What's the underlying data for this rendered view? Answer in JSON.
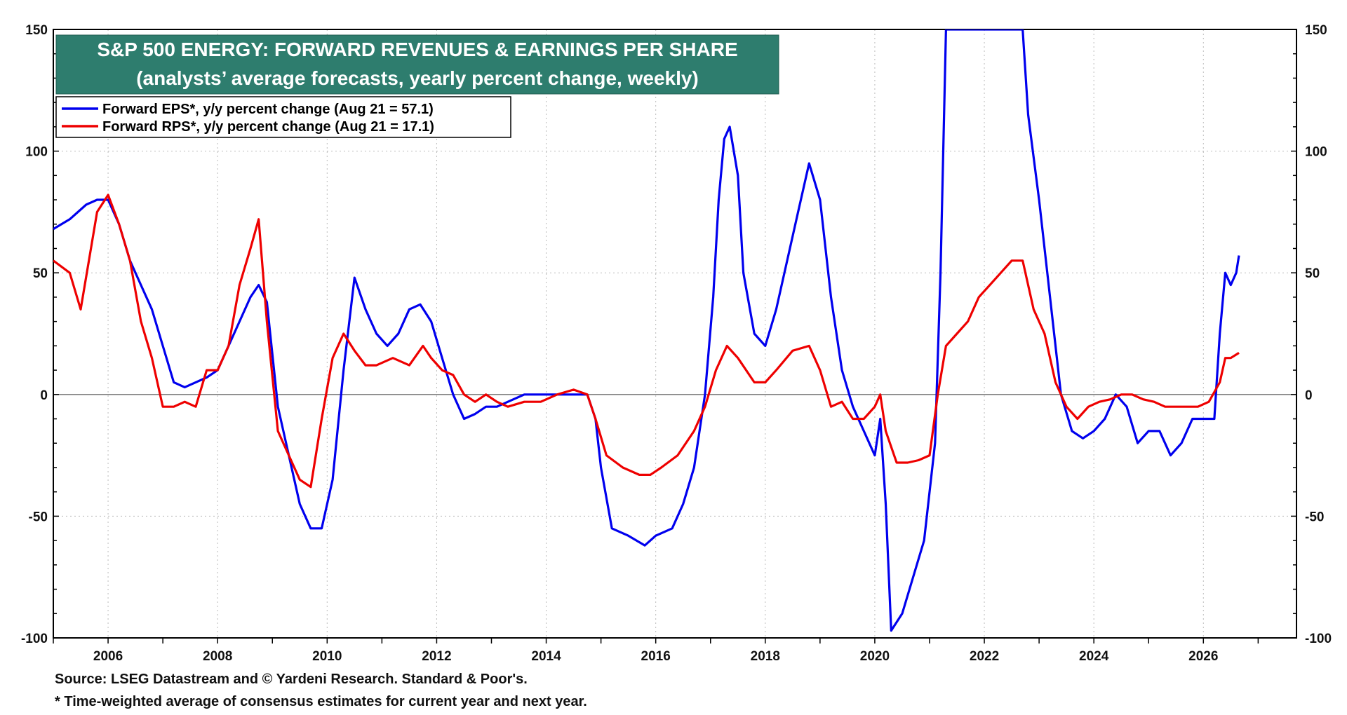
{
  "chart_data": {
    "type": "line",
    "title": "S&P 500 ENERGY: FORWARD REVENUES & EARNINGS PER SHARE",
    "subtitle": "(analysts’ average forecasts, yearly percent change, weekly)",
    "xlabel": "",
    "ylabel": "",
    "xlim": [
      2005.0,
      2027.7
    ],
    "ylim": [
      -100,
      150
    ],
    "y_ticks": [
      -100,
      -50,
      0,
      50,
      100,
      150
    ],
    "y_tick_labels": [
      "-100",
      "-50",
      "0",
      "50",
      "100",
      "150"
    ],
    "x_ticks": [
      2006,
      2008,
      2010,
      2012,
      2014,
      2016,
      2018,
      2020,
      2022,
      2024,
      2026
    ],
    "x_tick_labels": [
      "2006",
      "2008",
      "2010",
      "2012",
      "2014",
      "2016",
      "2018",
      "2020",
      "2022",
      "2024",
      "2026"
    ],
    "grid": true,
    "zero_line": true,
    "legend_position": "top-left",
    "series": [
      {
        "name": "Forward EPS*, y/y percent change (Aug 21 = 57.1)",
        "color": "#0000ee",
        "x": [
          2005.0,
          2005.3,
          2005.6,
          2005.8,
          2006.0,
          2006.2,
          2006.4,
          2006.6,
          2006.8,
          2007.0,
          2007.2,
          2007.4,
          2007.6,
          2007.8,
          2008.0,
          2008.2,
          2008.4,
          2008.6,
          2008.75,
          2008.9,
          2009.1,
          2009.3,
          2009.5,
          2009.7,
          2009.9,
          2010.1,
          2010.3,
          2010.5,
          2010.7,
          2010.9,
          2011.1,
          2011.3,
          2011.5,
          2011.7,
          2011.9,
          2012.1,
          2012.3,
          2012.5,
          2012.7,
          2012.9,
          2013.1,
          2013.3,
          2013.6,
          2013.9,
          2014.2,
          2014.5,
          2014.75,
          2014.9,
          2015.0,
          2015.2,
          2015.5,
          2015.8,
          2016.0,
          2016.3,
          2016.5,
          2016.7,
          2016.9,
          2017.05,
          2017.15,
          2017.25,
          2017.35,
          2017.5,
          2017.6,
          2017.8,
          2018.0,
          2018.2,
          2018.4,
          2018.6,
          2018.8,
          2019.0,
          2019.2,
          2019.4,
          2019.6,
          2019.8,
          2020.0,
          2020.1,
          2020.2,
          2020.3,
          2020.5,
          2020.7,
          2020.9,
          2021.1,
          2021.2,
          2021.3,
          2022.7,
          2022.8,
          2023.0,
          2023.2,
          2023.4,
          2023.6,
          2023.8,
          2024.0,
          2024.2,
          2024.4,
          2024.6,
          2024.8,
          2025.0,
          2025.2,
          2025.4,
          2025.6,
          2025.8,
          2026.0,
          2026.2,
          2026.3,
          2026.4,
          2026.5,
          2026.6,
          2026.65
        ],
        "values": [
          68,
          72,
          78,
          80,
          80,
          70,
          55,
          45,
          35,
          20,
          5,
          3,
          5,
          7,
          10,
          20,
          30,
          40,
          45,
          38,
          -5,
          -25,
          -45,
          -55,
          -55,
          -35,
          10,
          48,
          35,
          25,
          20,
          25,
          35,
          37,
          30,
          15,
          0,
          -10,
          -8,
          -5,
          -5,
          -3,
          0,
          0,
          0,
          0,
          0,
          -10,
          -30,
          -55,
          -58,
          -62,
          -58,
          -55,
          -45,
          -30,
          0,
          40,
          80,
          105,
          110,
          90,
          50,
          25,
          20,
          35,
          55,
          75,
          95,
          80,
          40,
          10,
          -5,
          -15,
          -25,
          -10,
          -45,
          -97,
          -90,
          -75,
          -60,
          -20,
          50,
          150,
          150,
          115,
          80,
          40,
          0,
          -15,
          -18,
          -15,
          -10,
          0,
          -5,
          -20,
          -15,
          -15,
          -25,
          -20,
          -10,
          -10,
          -10,
          25,
          50,
          45,
          50,
          57.1
        ]
      },
      {
        "name": "Forward RPS*, y/y percent change (Aug 21 = 17.1)",
        "color": "#ee0000",
        "x": [
          2005.0,
          2005.3,
          2005.5,
          2005.8,
          2006.0,
          2006.2,
          2006.4,
          2006.6,
          2006.8,
          2007.0,
          2007.2,
          2007.4,
          2007.6,
          2007.8,
          2008.0,
          2008.2,
          2008.4,
          2008.6,
          2008.75,
          2008.9,
          2009.1,
          2009.3,
          2009.5,
          2009.7,
          2009.9,
          2010.1,
          2010.3,
          2010.5,
          2010.7,
          2010.9,
          2011.2,
          2011.5,
          2011.75,
          2011.9,
          2012.1,
          2012.3,
          2012.5,
          2012.7,
          2012.9,
          2013.1,
          2013.3,
          2013.6,
          2013.9,
          2014.2,
          2014.5,
          2014.75,
          2014.9,
          2015.1,
          2015.4,
          2015.7,
          2015.9,
          2016.1,
          2016.4,
          2016.7,
          2016.9,
          2017.1,
          2017.3,
          2017.5,
          2017.8,
          2018.0,
          2018.2,
          2018.5,
          2018.8,
          2019.0,
          2019.2,
          2019.4,
          2019.6,
          2019.8,
          2020.0,
          2020.1,
          2020.2,
          2020.4,
          2020.6,
          2020.8,
          2021.0,
          2021.15,
          2021.3,
          2021.5,
          2021.7,
          2021.9,
          2022.1,
          2022.3,
          2022.5,
          2022.7,
          2022.9,
          2023.1,
          2023.3,
          2023.5,
          2023.7,
          2023.9,
          2024.1,
          2024.3,
          2024.5,
          2024.7,
          2024.9,
          2025.1,
          2025.3,
          2025.5,
          2025.7,
          2025.9,
          2026.1,
          2026.3,
          2026.4,
          2026.5,
          2026.65
        ],
        "values": [
          55,
          50,
          35,
          75,
          82,
          70,
          55,
          30,
          15,
          -5,
          -5,
          -3,
          -5,
          10,
          10,
          20,
          45,
          60,
          72,
          30,
          -15,
          -25,
          -35,
          -38,
          -10,
          15,
          25,
          18,
          12,
          12,
          15,
          12,
          20,
          15,
          10,
          8,
          0,
          -3,
          0,
          -3,
          -5,
          -3,
          -3,
          0,
          2,
          0,
          -10,
          -25,
          -30,
          -33,
          -33,
          -30,
          -25,
          -15,
          -5,
          10,
          20,
          15,
          5,
          5,
          10,
          18,
          20,
          10,
          -5,
          -3,
          -10,
          -10,
          -5,
          0,
          -15,
          -28,
          -28,
          -27,
          -25,
          0,
          20,
          25,
          30,
          40,
          45,
          50,
          55,
          55,
          35,
          25,
          5,
          -5,
          -10,
          -5,
          -3,
          -2,
          0,
          0,
          -2,
          -3,
          -5,
          -5,
          -5,
          -5,
          -3,
          5,
          15,
          15,
          17.1
        ]
      }
    ]
  },
  "footer": {
    "source": "Source: LSEG Datastream and © Yardeni Research. Standard & Poor's.",
    "note": "* Time-weighted average of consensus estimates for current year and next year."
  }
}
